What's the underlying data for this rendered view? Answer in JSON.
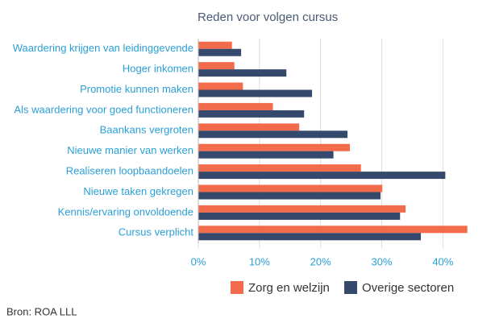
{
  "chart_data": {
    "type": "barh",
    "title": "Reden voor volgen cursus",
    "categories": [
      "Waardering krijgen van leidinggevende",
      "Hoger inkomen",
      "Promotie kunnen maken",
      "Als waardering voor goed functioneren",
      "Baankans vergroten",
      "Nieuwe manier van werken",
      "Realiseren loopbaandoelen",
      "Nieuwe taken gekregen",
      "Kennis/ervaring onvoldoende",
      "Cursus verplicht"
    ],
    "series": [
      {
        "name": "Zorg en welzijn",
        "color": "#f26b4a",
        "values": [
          5.5,
          5.9,
          7.3,
          12.2,
          16.5,
          24.8,
          26.6,
          30.1,
          33.9,
          44
        ]
      },
      {
        "name": "Overige sectoren",
        "color": "#34496b",
        "values": [
          7,
          14.4,
          18.6,
          17.3,
          24.4,
          22.1,
          40.4,
          29.8,
          33,
          36.4
        ]
      }
    ],
    "xlim": [
      0,
      48
    ],
    "xticks": [
      {
        "value": 0,
        "label": "0%"
      },
      {
        "value": 10,
        "label": "10%"
      },
      {
        "value": 20,
        "label": "20%"
      },
      {
        "value": 30,
        "label": "30%"
      },
      {
        "value": 40,
        "label": "40%"
      }
    ],
    "grid": true,
    "legend": "bottom",
    "source": "Bron: ROA LLL"
  }
}
